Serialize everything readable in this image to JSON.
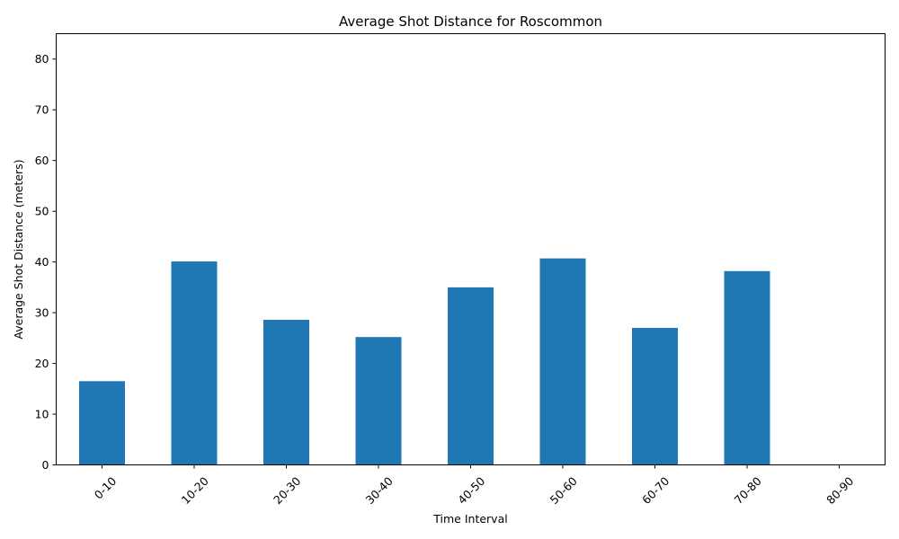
{
  "chart_data": {
    "type": "bar",
    "title": "Average Shot Distance for Roscommon",
    "xlabel": "Time Interval",
    "ylabel": "Average Shot Distance (meters)",
    "categories": [
      "0-10",
      "10-20",
      "20-30",
      "30-40",
      "40-50",
      "50-60",
      "60-70",
      "70-80",
      "80-90"
    ],
    "values": [
      16.5,
      40.1,
      28.6,
      25.2,
      35.0,
      40.7,
      27.0,
      38.2,
      0
    ],
    "ylim": [
      0,
      85
    ],
    "yticks": [
      0,
      10,
      20,
      30,
      40,
      50,
      60,
      70,
      80
    ],
    "bar_color": "#1f77b4",
    "grid": false,
    "legend": false
  }
}
